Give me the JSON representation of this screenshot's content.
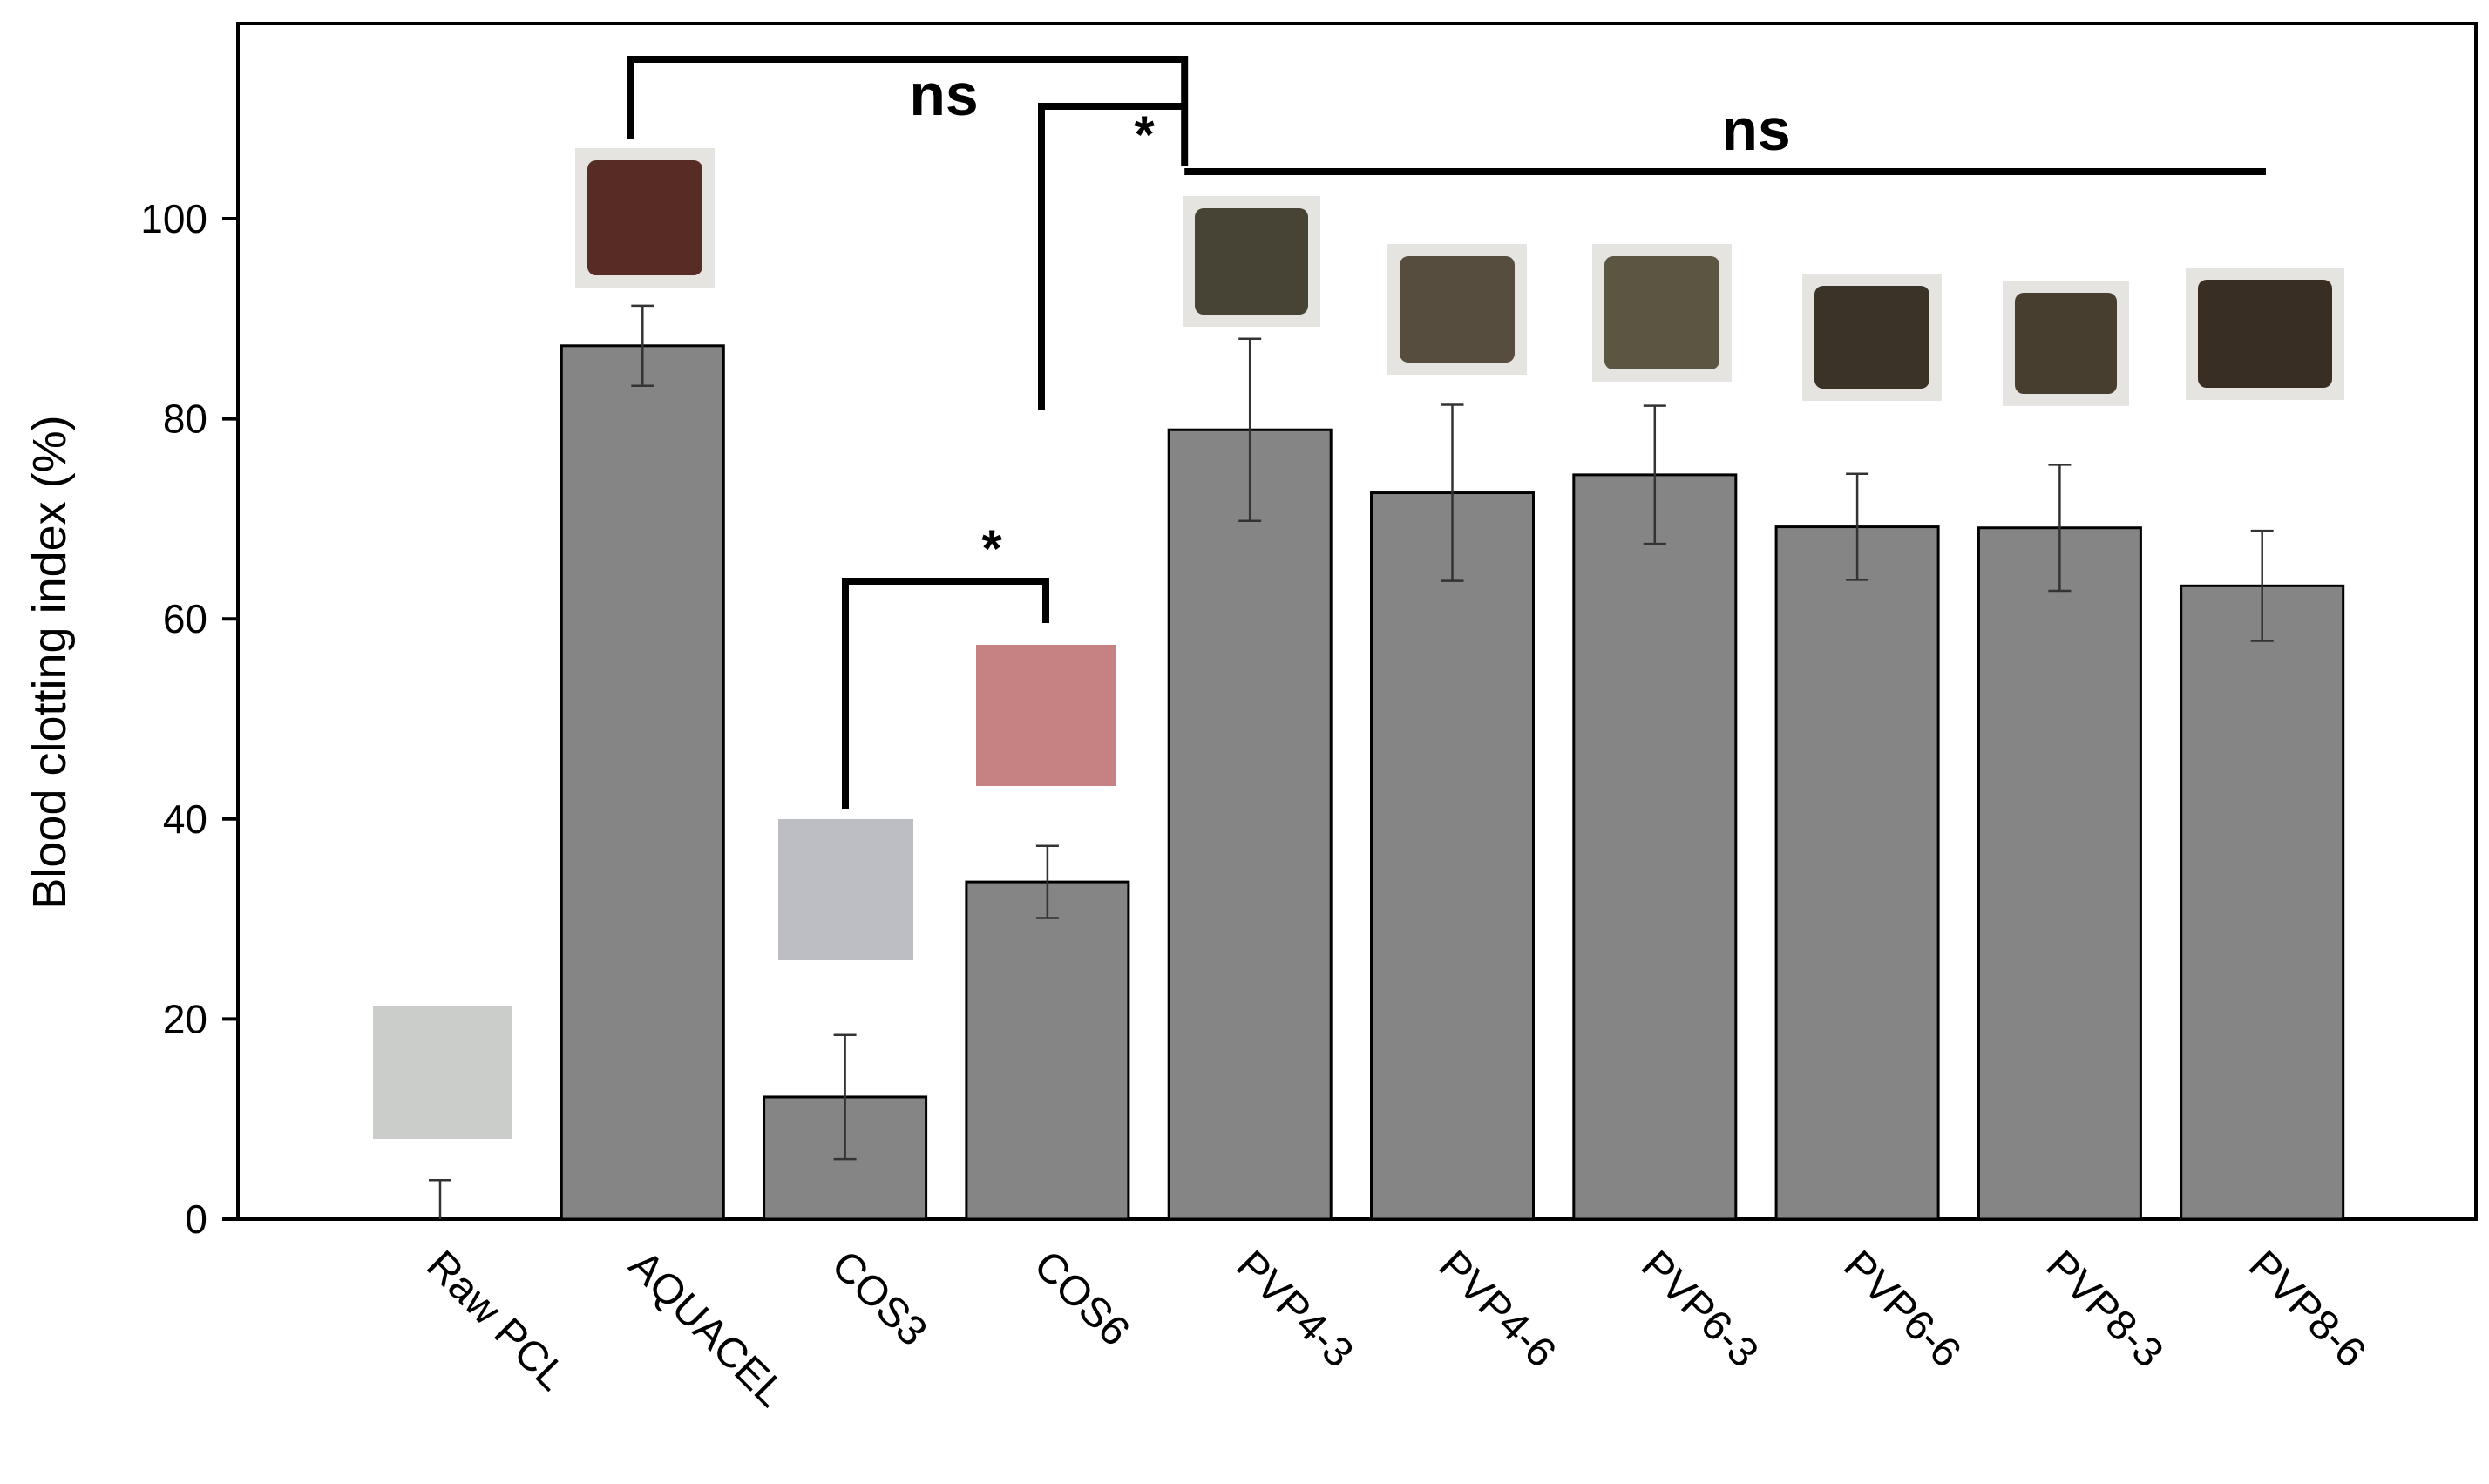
{
  "chart_data": {
    "type": "bar",
    "title": "",
    "xlabel": "",
    "ylabel": "Blood clotting index (%)",
    "ylim": [
      0,
      115
    ],
    "yticks": [
      0,
      20,
      40,
      60,
      80,
      100
    ],
    "grid": false,
    "bar_color": "#858585",
    "categories": [
      "Raw PCL",
      "AQUACEL",
      "COS3",
      "COS6",
      "PVP4-3",
      "PVP4-6",
      "PVP6-3",
      "PVP6-6",
      "PVP8-3",
      "PVP8-6"
    ],
    "values": [
      0,
      87.3,
      12.2,
      33.7,
      78.9,
      72.6,
      74.4,
      69.2,
      69.1,
      63.3
    ],
    "errors": [
      3.9,
      4.0,
      6.2,
      3.6,
      9.1,
      8.8,
      6.9,
      5.3,
      6.3,
      5.5
    ],
    "sample_photos": [
      {
        "category": "Raw PCL",
        "fill": "#c9cbc9"
      },
      {
        "category": "AQUACEL",
        "fill": "#4a1c14"
      },
      {
        "category": "COS3",
        "fill": "#b9bbc0"
      },
      {
        "category": "COS6",
        "fill": "#c3787a"
      },
      {
        "category": "PVP4-3",
        "fill": "#3a3626"
      },
      {
        "category": "PVP4-6",
        "fill": "#4a4030"
      },
      {
        "category": "PVP6-3",
        "fill": "#4e4a34"
      },
      {
        "category": "PVP6-6",
        "fill": "#2b2418"
      },
      {
        "category": "PVP8-3",
        "fill": "#3b3020"
      },
      {
        "category": "PVP8-6",
        "fill": "#2a1e12"
      }
    ],
    "annotations": [
      {
        "label": "ns",
        "between": [
          "AQUACEL",
          "PVP4-3"
        ]
      },
      {
        "label": "*",
        "between": [
          "COS6",
          "PVP4-3"
        ]
      },
      {
        "label": "ns",
        "between": [
          "PVP4-3",
          "PVP8-6"
        ]
      },
      {
        "label": "*",
        "between": [
          "COS3",
          "COS6"
        ]
      }
    ]
  }
}
